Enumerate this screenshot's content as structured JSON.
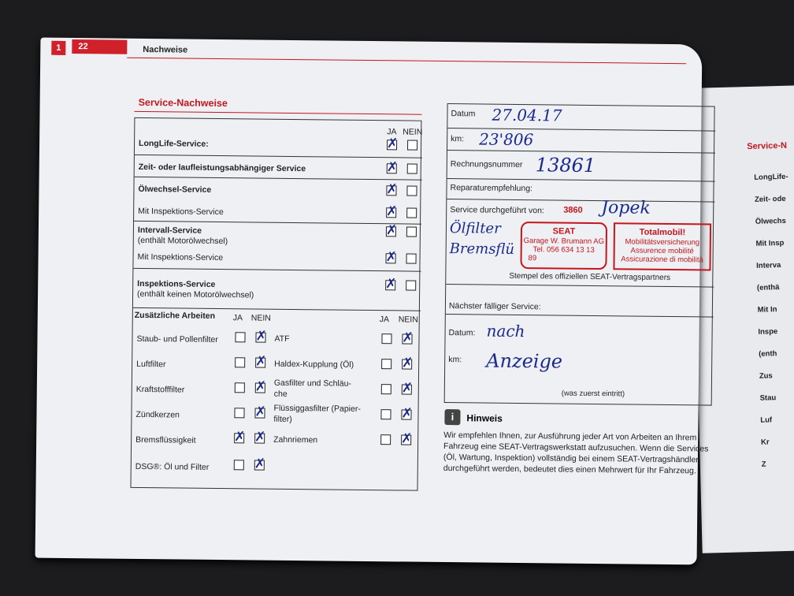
{
  "header": {
    "page_prev": "1",
    "page_number": "22",
    "section": "Nachweise"
  },
  "left": {
    "title": "Service-Nachweise",
    "col_ja": "JA",
    "col_nein": "NEIN",
    "services": [
      {
        "label": "LongLife-Service:",
        "bold": true,
        "ja": true,
        "nein": false
      },
      {
        "label": "Zeit- oder laufleistungsabhängiger Service",
        "bold": true,
        "ja": true,
        "nein": false
      },
      {
        "label": "Ölwechsel-Service",
        "bold": true,
        "ja": true,
        "nein": false
      },
      {
        "label": "Mit Inspektions-Service",
        "bold": false,
        "ja": true,
        "nein": false
      },
      {
        "label": "Intervall-Service",
        "sub": "(enthält Motorölwechsel)",
        "bold": true,
        "ja": true,
        "nein": false
      },
      {
        "label": "Mit Inspektions-Service",
        "bold": false,
        "ja": true,
        "nein": false
      },
      {
        "label": "Inspektions-Service",
        "sub": "(enthält keinen Motorölwechsel)",
        "bold": true,
        "ja": true,
        "nein": false
      }
    ],
    "extra_title": "Zusätzliche Arbeiten",
    "extra_left": [
      {
        "label": "Staub- und Pollenfilter",
        "ja": false,
        "nein": true
      },
      {
        "label": "Luftfilter",
        "ja": false,
        "nein": true
      },
      {
        "label": "Kraftstofffilter",
        "ja": false,
        "nein": true
      },
      {
        "label": "Zündkerzen",
        "ja": false,
        "nein": true
      },
      {
        "label": "Bremsflüssigkeit",
        "ja": true,
        "nein": true
      },
      {
        "label": "DSG®: Öl und Filter",
        "ja": false,
        "nein": true
      }
    ],
    "extra_right": [
      {
        "label": "ATF",
        "ja": false,
        "nein": true
      },
      {
        "label": "Haldex-Kupplung (Öl)",
        "ja": false,
        "nein": true
      },
      {
        "label": "Gasfilter und Schläu-",
        "label2": "che",
        "ja": false,
        "nein": true
      },
      {
        "label": "Flüssiggasfilter (Papier-",
        "label2": "filter)",
        "ja": false,
        "nein": true
      },
      {
        "label": "Zahnriemen",
        "ja": false,
        "nein": true
      }
    ]
  },
  "right": {
    "datum_label": "Datum",
    "datum_value": "27.04.17",
    "km_label": "km:",
    "km_value": "23'806",
    "rechnung_label": "Rechnungsnummer",
    "rechnung_value": "13861",
    "reparatur_label": "Reparaturempfehlung:",
    "service_label": "Service durchgeführt von:",
    "service_code": "3860",
    "signature": "Jopek",
    "handwritten_note1": "Ölfilter",
    "handwritten_note2": "Bremsflü",
    "stamp1": {
      "brand": "SEAT",
      "line1": "Garage W. Brumann AG",
      "line2": "Tel. 056 634 13 13",
      "line3": "89"
    },
    "stamp2": {
      "title": "Totalmobil!",
      "line1": "Mobilitätsversicherung",
      "line2": "Assurence mobilité",
      "line3": "Assicurazione di mobilità"
    },
    "stamp_caption": "Stempel des offiziellen SEAT-Vertragspartners",
    "next_label": "Nächster fälliger Service:",
    "next_datum_label": "Datum:",
    "next_datum_value": "nach",
    "next_km_label": "km:",
    "next_km_value": "Anzeige",
    "next_note": "(was zuerst eintritt)"
  },
  "hinweis": {
    "title": "Hinweis",
    "text": "Wir empfehlen Ihnen, zur Ausführung jeder Art von Arbeiten an Ihrem Fahrzeug eine SEAT-Vertragswerkstatt aufzusuchen. Wenn die Services (Öl, Wartung, Inspektion) vollständig bei einem SEAT-Vertragshändler durchgeführt werden, bedeutet dies einen Mehrwert für Ihr Fahrzeug."
  },
  "next_page": {
    "title": "Service-N",
    "rows": [
      "LongLife-",
      "Zeit- ode",
      "Ölwechs",
      "Mit Insp",
      "Interva",
      "(enthä",
      "Mit In",
      "Inspe",
      "(enth",
      "Zus",
      "Stau",
      "Luf",
      "Kr",
      "Z"
    ]
  },
  "colors": {
    "accent": "#c4161c",
    "ink": "#1b2a8c",
    "background": "#1c1c1e"
  }
}
